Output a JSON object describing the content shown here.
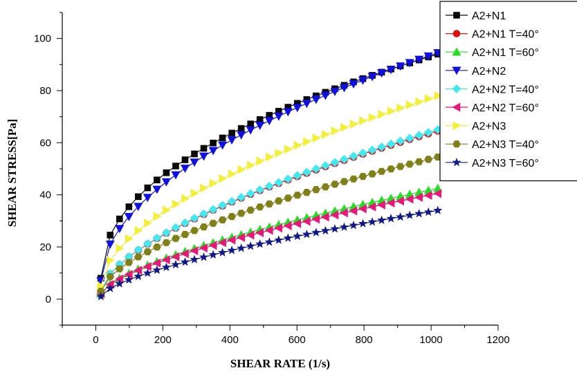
{
  "chart_data": {
    "type": "line",
    "xlabel": "SHEAR RATE (1/s)",
    "ylabel": "SHEAR STRESS[Pa]",
    "xlim": [
      -100,
      1200
    ],
    "ylim": [
      -10,
      110
    ],
    "xticks": [
      0,
      200,
      400,
      600,
      800,
      1000,
      1200
    ],
    "yticks": [
      0,
      20,
      40,
      60,
      80,
      100
    ],
    "x_tick_labels": [
      "0",
      "200",
      "400",
      "600",
      "800",
      "1000",
      "1200"
    ],
    "y_tick_labels": [
      "0",
      "20",
      "40",
      "60",
      "80",
      "100"
    ],
    "x_start": 15,
    "x_end": 1020,
    "n_points": 37,
    "legend_position": "top-right",
    "series": [
      {
        "name": "A2+N1",
        "marker": "square",
        "color": "#0a0a0a",
        "y0": 8,
        "y_end": 94,
        "exponent": 0.46
      },
      {
        "name": "A2+N1 T=40°",
        "marker": "circle",
        "color": "#e01010",
        "y0": 3,
        "y_end": 64.5,
        "exponent": 0.62
      },
      {
        "name": "A2+N1 T=60°",
        "marker": "triangle-up",
        "color": "#22dd22",
        "y0": 2,
        "y_end": 42.5,
        "exponent": 0.66
      },
      {
        "name": "A2+N2",
        "marker": "triangle-down",
        "color": "#1010e0",
        "y0": 7,
        "y_end": 94.5,
        "exponent": 0.51
      },
      {
        "name": "A2+N2 T=40°",
        "marker": "diamond",
        "color": "#44e8f0",
        "y0": 3,
        "y_end": 65,
        "exponent": 0.62
      },
      {
        "name": "A2+N2 T=60°",
        "marker": "triangle-left",
        "color": "#e8187a",
        "y0": 2,
        "y_end": 40.5,
        "exponent": 0.66
      },
      {
        "name": "A2+N3",
        "marker": "triangle-right",
        "color": "#f2f03a",
        "y0": 5,
        "y_end": 78,
        "exponent": 0.56
      },
      {
        "name": "A2+N3 T=40°",
        "marker": "hexagon",
        "color": "#808018",
        "y0": 3,
        "y_end": 54.5,
        "exponent": 0.62
      },
      {
        "name": "A2+N3 T=60°",
        "marker": "star",
        "color": "#101888",
        "y0": 1,
        "y_end": 34,
        "exponent": 0.66
      }
    ]
  }
}
